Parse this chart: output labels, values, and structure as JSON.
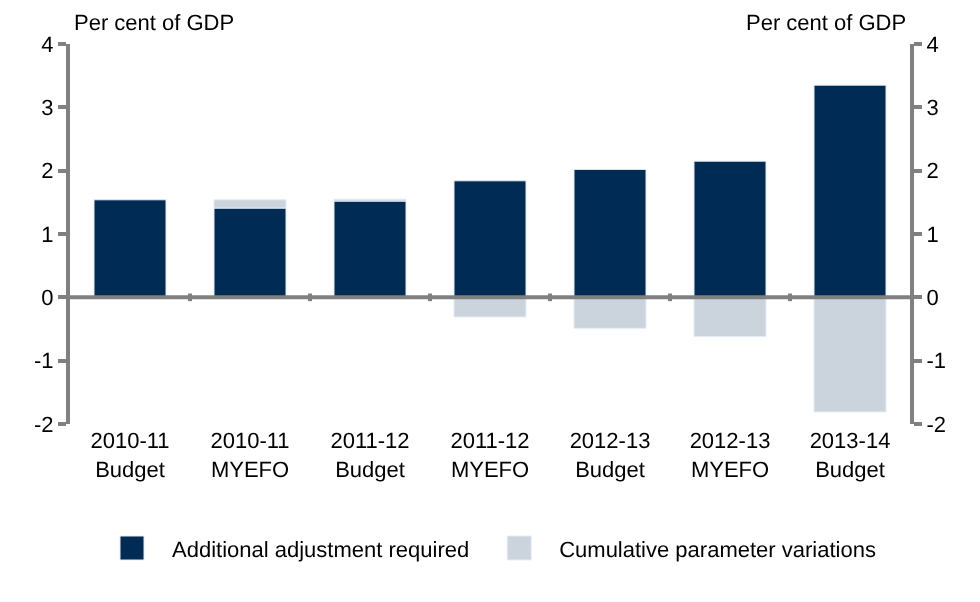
{
  "chart_data": {
    "type": "bar",
    "stacked": true,
    "ylabel": "Per cent of GDP",
    "y2label": "Per cent of GDP",
    "categories": [
      "2010-11 Budget",
      "2010-11 MYEFO",
      "2011-12 Budget",
      "2011-12 MYEFO",
      "2012-13 Budget",
      "2012-13 MYEFO",
      "2013-14 Budget"
    ],
    "series": [
      {
        "name": "Additional adjustment required",
        "color": "#002b55",
        "values": [
          1.54,
          1.41,
          1.52,
          1.84,
          2.02,
          2.15,
          3.35
        ]
      },
      {
        "name": "Cumulative parameter variations",
        "color": "#cbd3dd",
        "values": [
          null,
          0.13,
          0.03,
          -0.31,
          -0.49,
          -0.62,
          -1.81
        ]
      }
    ],
    "ylim": [
      -2,
      4
    ],
    "yticks": [
      -2,
      -1,
      0,
      1,
      2,
      3,
      4
    ],
    "y2lim": [
      -2,
      4
    ],
    "y2ticks": [
      -2,
      -1,
      0,
      1,
      2,
      3,
      4
    ],
    "legend": "bottom"
  }
}
